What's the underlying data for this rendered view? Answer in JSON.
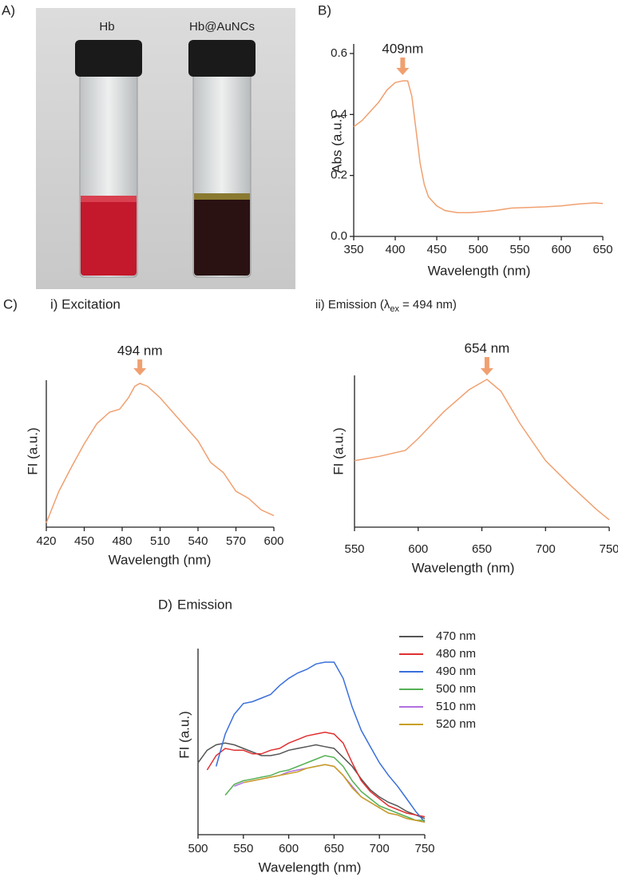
{
  "panel_labels": [
    "A)",
    "B)",
    "C)",
    "D)"
  ],
  "photo": {
    "labels": [
      "Hb",
      "Hb@AuNCs"
    ]
  },
  "chart_data": [
    {
      "type": "line",
      "xlabel": "Wavelength (nm)",
      "ylabel": "Abs (a.u.)",
      "x": [
        350,
        360,
        370,
        380,
        390,
        400,
        409,
        415,
        420,
        425,
        430,
        435,
        440,
        450,
        460,
        475,
        490,
        500,
        520,
        540,
        560,
        580,
        600,
        620,
        640,
        650
      ],
      "series": [
        {
          "color": "#f0a070",
          "values": [
            0.36,
            0.38,
            0.41,
            0.44,
            0.48,
            0.505,
            0.51,
            0.51,
            0.46,
            0.35,
            0.24,
            0.17,
            0.13,
            0.1,
            0.085,
            0.078,
            0.078,
            0.08,
            0.085,
            0.093,
            0.095,
            0.097,
            0.1,
            0.106,
            0.11,
            0.108
          ]
        }
      ],
      "xlim": [
        350,
        650
      ],
      "xticks": [
        350,
        400,
        450,
        500,
        550,
        600,
        650
      ],
      "ylim": [
        0,
        0.6
      ],
      "yticks": [
        {
          "value": 0,
          "label": "0.0"
        },
        0.2,
        0.4,
        0.6
      ],
      "annotations": [
        {
          "text": "409nm",
          "x": 409
        }
      ]
    },
    {
      "type": "line",
      "title": "i) Excitation",
      "xlabel": "Wavelength (nm)",
      "ylabel": "FI (a.u.)",
      "x": [
        420,
        430,
        440,
        450,
        460,
        470,
        478,
        485,
        490,
        494,
        500,
        510,
        520,
        530,
        540,
        550,
        560,
        570,
        580,
        590,
        600
      ],
      "series": [
        {
          "color": "#f0a070",
          "values": [
            0.03,
            0.25,
            0.42,
            0.58,
            0.72,
            0.8,
            0.82,
            0.9,
            0.98,
            1.0,
            0.98,
            0.9,
            0.8,
            0.7,
            0.6,
            0.45,
            0.38,
            0.25,
            0.2,
            0.12,
            0.08
          ]
        }
      ],
      "xlim": [
        420,
        600
      ],
      "xticks": [
        420,
        450,
        480,
        510,
        540,
        570,
        600
      ],
      "ylim": [
        0,
        1
      ],
      "annotations": [
        {
          "text": "494 nm",
          "x": 494
        }
      ]
    },
    {
      "type": "line",
      "title": "ii) Emission (λ",
      "title_sub": "ex",
      "title_end": "= 494 nm)",
      "xlabel": "Wavelength (nm)",
      "ylabel": "FI (a.u.)",
      "x": [
        550,
        570,
        590,
        600,
        620,
        640,
        654,
        665,
        680,
        700,
        720,
        740,
        750
      ],
      "series": [
        {
          "color": "#f0a070",
          "values": [
            0.45,
            0.48,
            0.52,
            0.6,
            0.78,
            0.93,
            1.0,
            0.92,
            0.7,
            0.45,
            0.28,
            0.12,
            0.05
          ]
        }
      ],
      "xlim": [
        550,
        750
      ],
      "xticks": [
        550,
        600,
        650,
        700,
        750
      ],
      "ylim": [
        0,
        1
      ],
      "annotations": [
        {
          "text": "654 nm",
          "x": 654
        }
      ]
    },
    {
      "type": "line",
      "title": "Emission",
      "xlabel": "Wavelength (nm)",
      "ylabel": "FI (a.u.)",
      "x": [
        500,
        510,
        520,
        530,
        540,
        550,
        560,
        570,
        580,
        590,
        600,
        610,
        620,
        630,
        640,
        650,
        660,
        670,
        680,
        690,
        700,
        710,
        720,
        730,
        740,
        750
      ],
      "series": [
        {
          "name": "470 nm",
          "color": "#555555",
          "values": [
            0.4,
            0.47,
            0.5,
            0.51,
            0.5,
            0.48,
            0.46,
            0.44,
            0.44,
            0.45,
            0.47,
            0.48,
            0.49,
            0.5,
            0.49,
            0.48,
            0.43,
            0.38,
            0.31,
            0.25,
            0.21,
            0.18,
            0.16,
            0.13,
            0.11,
            0.09
          ]
        },
        {
          "name": "480 nm",
          "color": "#e03030",
          "values": [
            null,
            0.36,
            0.44,
            0.48,
            0.47,
            0.47,
            0.45,
            0.45,
            0.47,
            0.48,
            0.51,
            0.53,
            0.55,
            0.56,
            0.57,
            0.56,
            0.51,
            0.4,
            0.3,
            0.24,
            0.2,
            0.16,
            0.14,
            0.12,
            0.11,
            0.1
          ]
        },
        {
          "name": "490 nm",
          "color": "#3a6fdc",
          "values": [
            null,
            null,
            0.38,
            0.56,
            0.67,
            0.73,
            0.74,
            0.76,
            0.78,
            0.83,
            0.87,
            0.9,
            0.92,
            0.95,
            0.96,
            0.96,
            0.87,
            0.71,
            0.58,
            0.49,
            0.4,
            0.33,
            0.27,
            0.2,
            0.13,
            0.07
          ]
        },
        {
          "name": "500 nm",
          "color": "#55b055",
          "values": [
            null,
            null,
            null,
            0.22,
            0.28,
            0.3,
            0.31,
            0.32,
            0.33,
            0.35,
            0.36,
            0.38,
            0.4,
            0.42,
            0.44,
            0.43,
            0.38,
            0.3,
            0.24,
            0.2,
            0.16,
            0.14,
            0.12,
            0.1,
            0.08,
            0.08
          ]
        },
        {
          "name": "510 nm",
          "color": "#b070e0",
          "values": [
            null,
            null,
            null,
            null,
            0.27,
            0.29,
            0.3,
            0.31,
            0.32,
            0.33,
            0.35,
            0.36,
            0.37,
            0.38,
            0.39,
            0.38,
            0.33,
            0.27,
            0.21,
            0.18,
            0.15,
            0.12,
            0.11,
            0.09,
            0.08,
            0.07
          ]
        },
        {
          "name": "520 nm",
          "color": "#c8a020",
          "values": [
            null,
            null,
            null,
            null,
            null,
            0.29,
            0.3,
            0.31,
            0.32,
            0.33,
            0.34,
            0.35,
            0.37,
            0.38,
            0.39,
            0.38,
            0.33,
            0.26,
            0.21,
            0.18,
            0.15,
            0.12,
            0.11,
            0.09,
            0.08,
            0.07
          ]
        }
      ],
      "xlim": [
        500,
        750
      ],
      "xticks": [
        500,
        550,
        600,
        650,
        700,
        750
      ],
      "ylim": [
        0,
        1
      ]
    }
  ]
}
